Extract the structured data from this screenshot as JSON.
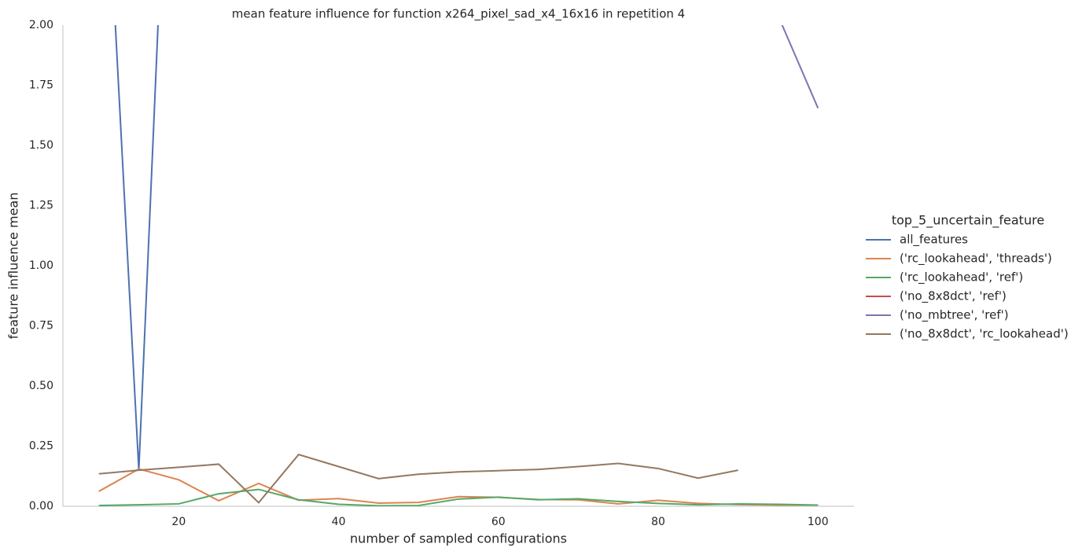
{
  "chart_data": {
    "type": "line",
    "title": "mean feature influence for function x264_pixel_sad_x4_16x16 in repetition 4",
    "x_label": "number of sampled configurations",
    "y_label": "feature influence mean",
    "legend_title": "top_5_uncertain_feature",
    "legend_position": "right",
    "grid": false,
    "x": [
      10,
      15,
      20,
      25,
      30,
      35,
      40,
      45,
      50,
      55,
      60,
      65,
      70,
      75,
      80,
      85,
      90,
      95,
      100
    ],
    "xlim": [
      5.5,
      104.5
    ],
    "xticks": [
      20,
      40,
      60,
      80,
      100
    ],
    "ylim": [
      0,
      2
    ],
    "yticks": [
      {
        "value": 0,
        "label": "0.00"
      },
      {
        "value": 0.25,
        "label": "0.25"
      },
      {
        "value": 0.5,
        "label": "0.50"
      },
      {
        "value": 0.75,
        "label": "0.75"
      },
      {
        "value": 1,
        "label": "1.00"
      },
      {
        "value": 1.25,
        "label": "1.25"
      },
      {
        "value": 1.5,
        "label": "1.50"
      },
      {
        "value": 1.75,
        "label": "1.75"
      },
      {
        "value": 2,
        "label": "2.00"
      }
    ],
    "series": [
      {
        "name": "all_features",
        "color": "#4c72b0",
        "values": [
          3.3,
          0.15,
          4.0,
          null,
          null,
          null,
          null,
          null,
          null,
          null,
          null,
          null,
          null,
          null,
          null,
          null,
          null,
          null,
          null
        ]
      },
      {
        "name": "('rc_lookahead', 'threads')",
        "color": "#dd8452",
        "values": [
          0.062,
          0.155,
          0.11,
          0.023,
          0.095,
          0.025,
          0.032,
          0.013,
          0.016,
          0.04,
          0.037,
          0.028,
          0.027,
          0.01,
          0.025,
          0.012,
          0.007,
          0.005,
          0.005
        ]
      },
      {
        "name": "('rc_lookahead', 'ref')",
        "color": "#55a868",
        "values": [
          0.003,
          0.006,
          0.01,
          0.052,
          0.07,
          0.027,
          0.008,
          0.002,
          0.003,
          0.03,
          0.038,
          0.027,
          0.031,
          0.02,
          0.012,
          0.006,
          0.01,
          0.008,
          0.005
        ]
      },
      {
        "name": "('no_8x8dct', 'ref')",
        "color": "#c44e52",
        "values": [
          null,
          null,
          null,
          null,
          null,
          null,
          null,
          null,
          null,
          null,
          null,
          null,
          null,
          null,
          null,
          null,
          null,
          null,
          null
        ]
      },
      {
        "name": "('no_mbtree', 'ref')",
        "color": "#8172b3",
        "values": [
          null,
          null,
          null,
          null,
          null,
          null,
          null,
          null,
          null,
          null,
          null,
          null,
          null,
          null,
          null,
          null,
          null,
          2.04,
          1.655
        ]
      },
      {
        "name": "('no_8x8dct', 'rc_lookahead')",
        "color": "#937860",
        "values": [
          0.135,
          0.15,
          0.162,
          0.175,
          0.015,
          0.215,
          0.165,
          0.115,
          0.133,
          0.143,
          0.148,
          0.153,
          0.165,
          0.178,
          0.157,
          0.117,
          0.15,
          null,
          null
        ]
      }
    ]
  }
}
